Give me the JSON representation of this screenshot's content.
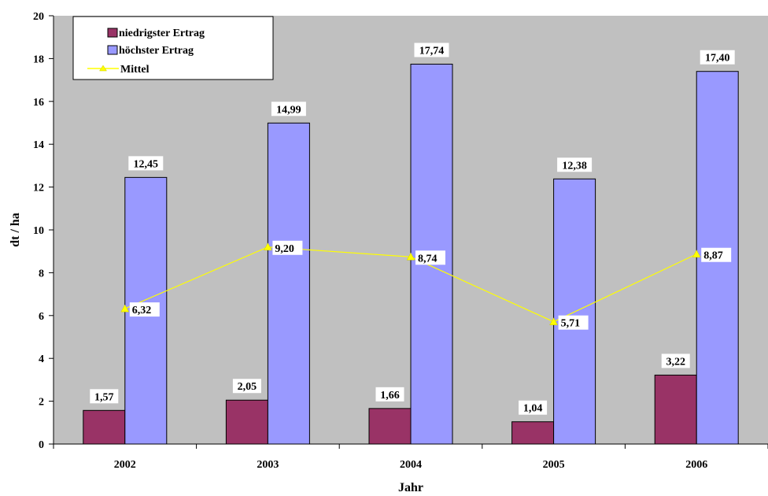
{
  "chart_data": {
    "type": "bar",
    "categories": [
      "2002",
      "2003",
      "2004",
      "2005",
      "2006"
    ],
    "series": [
      {
        "name": "niedrigster Ertrag",
        "kind": "bar",
        "color": "#993366",
        "values": [
          1.57,
          2.05,
          1.66,
          1.04,
          3.22
        ],
        "labels": [
          "1,57",
          "2,05",
          "1,66",
          "1,04",
          "3,22"
        ]
      },
      {
        "name": "höchster Ertrag",
        "kind": "bar",
        "color": "#9999FF",
        "values": [
          12.45,
          14.99,
          17.74,
          12.38,
          17.4
        ],
        "labels": [
          "12,45",
          "14,99",
          "17,74",
          "12,38",
          "17,40"
        ]
      },
      {
        "name": "Mittel",
        "kind": "line",
        "color": "#FFFF00",
        "marker": "triangle",
        "values": [
          6.32,
          9.2,
          8.74,
          5.71,
          8.87
        ],
        "labels": [
          "6,32",
          "9,20",
          "8,74",
          "5,71",
          "8,87"
        ]
      }
    ],
    "xlabel": "Jahr",
    "ylabel": "dt / ha",
    "ylim": [
      0,
      20
    ],
    "yticks": [
      0,
      2,
      4,
      6,
      8,
      10,
      12,
      14,
      16,
      18,
      20
    ],
    "grid": false,
    "plot_background": "#C0C0C0",
    "legend_position": "top-left"
  }
}
